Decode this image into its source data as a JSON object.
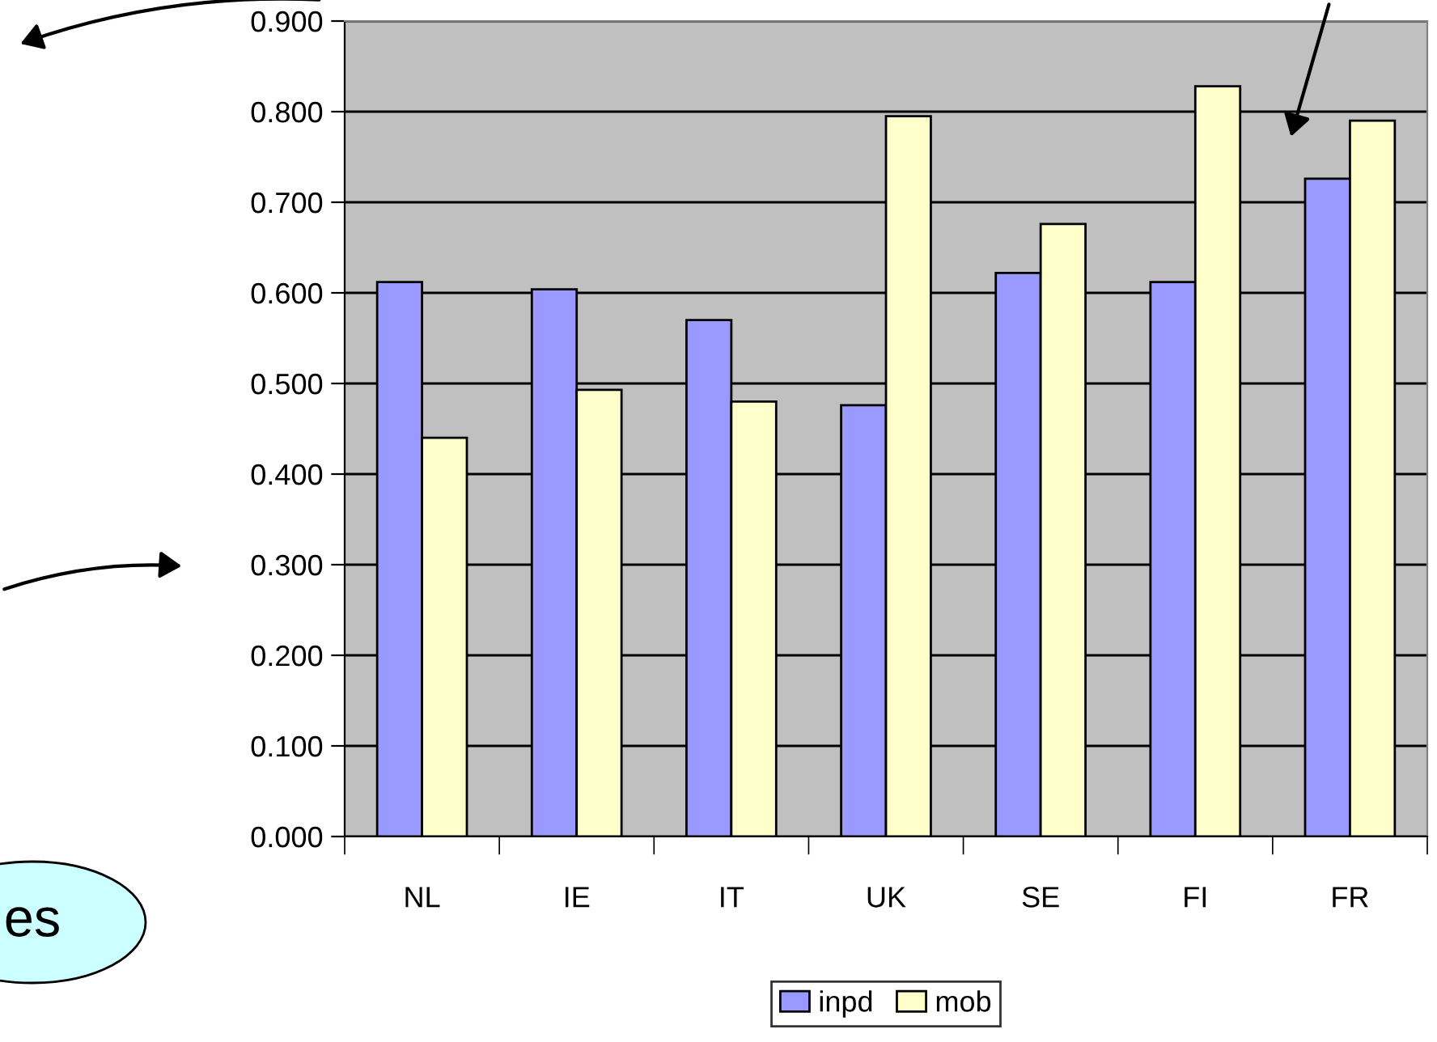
{
  "chart_data": {
    "type": "bar",
    "categories": [
      "NL",
      "IE",
      "IT",
      "UK",
      "SE",
      "FI",
      "FR"
    ],
    "series": [
      {
        "name": "inpd",
        "color": "#9999ff",
        "values": [
          0.612,
          0.604,
          0.57,
          0.476,
          0.622,
          0.612,
          0.726
        ]
      },
      {
        "name": "mob",
        "color": "#ffffcc",
        "values": [
          0.44,
          0.493,
          0.48,
          0.795,
          0.676,
          0.828,
          0.79
        ]
      }
    ],
    "ylim": [
      0,
      0.9
    ],
    "yticks": [
      {
        "value": 0,
        "label": "0.000"
      },
      {
        "value": 0.1,
        "label": "0.100"
      },
      {
        "value": 0.2,
        "label": "0.200"
      },
      {
        "value": 0.3,
        "label": "0.300"
      },
      {
        "value": 0.4,
        "label": "0.400"
      },
      {
        "value": 0.5,
        "label": "0.500"
      },
      {
        "value": 0.6,
        "label": "0.600"
      },
      {
        "value": 0.7,
        "label": "0.700"
      },
      {
        "value": 0.8,
        "label": "0.800"
      },
      {
        "value": 0.9,
        "label": "0.900"
      }
    ],
    "grid": "y",
    "legend": "bottom",
    "annotations": [
      "es"
    ]
  }
}
